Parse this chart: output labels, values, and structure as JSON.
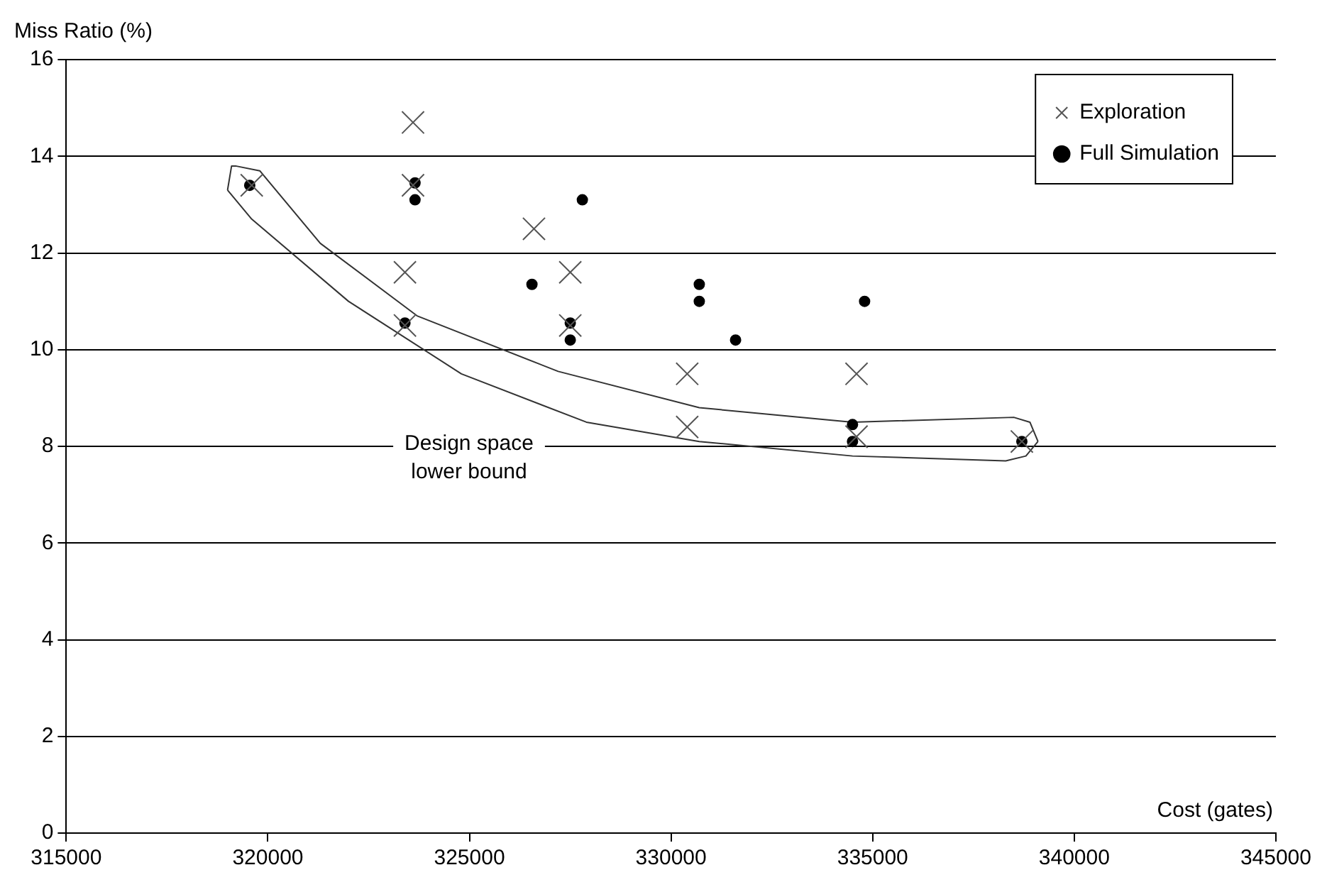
{
  "chart_data": {
    "type": "scatter",
    "xlabel": "Cost (gates)",
    "ylabel": "Miss Ratio (%)",
    "xlim": [
      315000,
      345000
    ],
    "xticks": [
      315000,
      320000,
      325000,
      330000,
      335000,
      340000,
      345000
    ],
    "ylim": [
      0,
      16
    ],
    "yticks": [
      0,
      2,
      4,
      6,
      8,
      10,
      12,
      14,
      16
    ],
    "grid": "y",
    "legend": "top right",
    "annotations": [
      "Design space\nlower bound"
    ],
    "series": [
      {
        "name": "Exploration",
        "color": "#555555",
        "marker": "cross",
        "x": [
          319600,
          323600,
          323600,
          323400,
          323400,
          326600,
          327500,
          327500,
          330400,
          330400,
          334600,
          334600,
          338700
        ],
        "values": [
          13.4,
          14.7,
          13.4,
          11.6,
          10.5,
          12.5,
          11.6,
          10.5,
          9.5,
          8.4,
          9.5,
          8.2,
          8.1
        ]
      },
      {
        "name": "Full Simulation",
        "color": "#000000",
        "marker": "circle",
        "x": [
          319550,
          323650,
          323650,
          323400,
          326550,
          327800,
          327500,
          327500,
          330700,
          330700,
          331600,
          334800,
          334500,
          334500,
          338700
        ],
        "values": [
          13.4,
          13.45,
          13.1,
          10.55,
          11.35,
          13.1,
          10.55,
          10.2,
          11.35,
          11.0,
          10.2,
          11.0,
          8.45,
          8.1,
          8.1
        ]
      },
      {
        "type": "line",
        "color": "#333333",
        "marker": "none",
        "x": [
          319000,
          319100,
          319200,
          319800,
          321300,
          323700,
          327200,
          330700,
          334500,
          338500,
          338900,
          339100
        ],
        "values": [
          13.3,
          13.8,
          13.8,
          13.7,
          12.2,
          10.7,
          9.55,
          8.8,
          8.5,
          8.6,
          8.5,
          8.1
        ]
      },
      {
        "type": "line",
        "color": "#333333",
        "marker": "none",
        "x": [
          319000,
          319600,
          322000,
          324800,
          327900,
          330700,
          334500,
          338300,
          338800,
          339100
        ],
        "values": [
          13.3,
          12.7,
          11.0,
          9.5,
          8.5,
          8.1,
          7.8,
          7.7,
          7.8,
          8.1
        ]
      }
    ]
  }
}
